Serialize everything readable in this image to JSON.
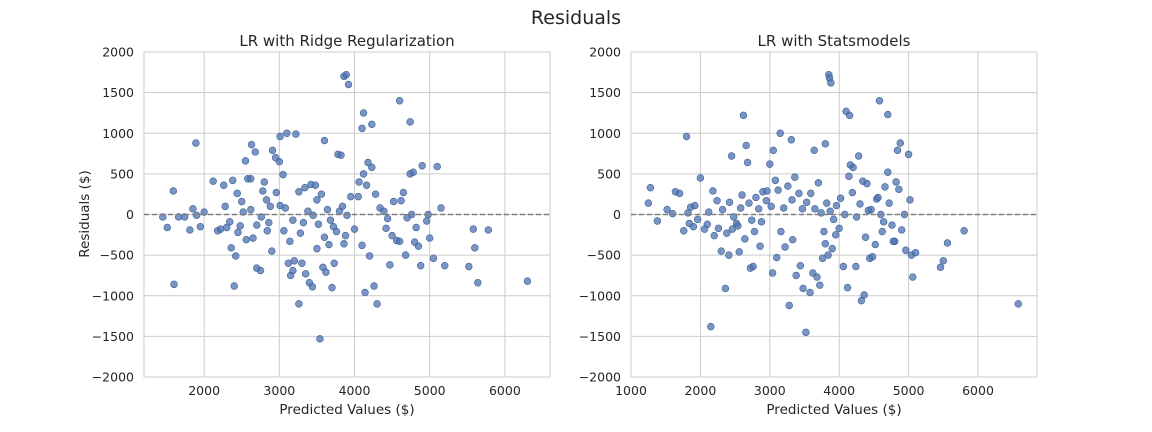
{
  "figure": {
    "suptitle": "Residuals"
  },
  "chart_data": [
    {
      "type": "scatter",
      "title": "LR with Ridge Regularization",
      "xlabel": "Predicted Values ($)",
      "ylabel": "Residuals ($)",
      "xlim": [
        1200,
        6600
      ],
      "ylim": [
        -2000,
        2000
      ],
      "xticks": [
        2000,
        3000,
        4000,
        5000,
        6000
      ],
      "yticks": [
        -2000,
        -1500,
        -1000,
        -500,
        0,
        500,
        1000,
        1500,
        2000
      ],
      "xtick_labels": [
        "2000",
        "3000",
        "4000",
        "5000",
        "6000"
      ],
      "ytick_labels": [
        "−2000",
        "−1500",
        "−1000",
        "−500",
        "0",
        "500",
        "1000",
        "1500",
        "2000"
      ],
      "grid": true,
      "reference_line": {
        "y": 0,
        "style": "dashed",
        "color": "#808080"
      },
      "color": "#4c72b0",
      "points": [
        [
          1890,
          880
        ],
        [
          3010,
          960
        ],
        [
          3220,
          990
        ],
        [
          3860,
          1700
        ],
        [
          3890,
          1720
        ],
        [
          3920,
          1600
        ],
        [
          4120,
          1250
        ],
        [
          4230,
          1110
        ],
        [
          4600,
          1400
        ],
        [
          4740,
          1140
        ],
        [
          4100,
          1060
        ],
        [
          3600,
          910
        ],
        [
          2630,
          860
        ],
        [
          2910,
          790
        ],
        [
          2680,
          770
        ],
        [
          3100,
          1000
        ],
        [
          2120,
          410
        ],
        [
          1590,
          290
        ],
        [
          1450,
          -30
        ],
        [
          1510,
          -160
        ],
        [
          1600,
          -860
        ],
        [
          1660,
          -30
        ],
        [
          1740,
          -30
        ],
        [
          1810,
          -190
        ],
        [
          1850,
          70
        ],
        [
          1900,
          -10
        ],
        [
          1950,
          -150
        ],
        [
          2000,
          30
        ],
        [
          2180,
          -200
        ],
        [
          2220,
          -180
        ],
        [
          2260,
          360
        ],
        [
          2300,
          -160
        ],
        [
          2380,
          420
        ],
        [
          2360,
          -410
        ],
        [
          2420,
          -510
        ],
        [
          2400,
          -880
        ],
        [
          2500,
          160
        ],
        [
          2550,
          660
        ],
        [
          2580,
          440
        ],
        [
          2620,
          440
        ],
        [
          2650,
          -290
        ],
        [
          2700,
          -660
        ],
        [
          2750,
          -690
        ],
        [
          2800,
          400
        ],
        [
          2830,
          180
        ],
        [
          2860,
          -100
        ],
        [
          2900,
          -450
        ],
        [
          2950,
          700
        ],
        [
          3000,
          650
        ],
        [
          3050,
          490
        ],
        [
          3080,
          80
        ],
        [
          3120,
          -600
        ],
        [
          3150,
          -750
        ],
        [
          3180,
          -690
        ],
        [
          3200,
          -570
        ],
        [
          3260,
          -1100
        ],
        [
          3300,
          -600
        ],
        [
          3350,
          -730
        ],
        [
          3400,
          -840
        ],
        [
          3440,
          -890
        ],
        [
          3500,
          -420
        ],
        [
          3540,
          -1530
        ],
        [
          3580,
          -650
        ],
        [
          3620,
          -710
        ],
        [
          3660,
          -370
        ],
        [
          3700,
          -900
        ],
        [
          3730,
          -600
        ],
        [
          3780,
          740
        ],
        [
          3820,
          730
        ],
        [
          3860,
          -360
        ],
        [
          3900,
          -10
        ],
        [
          3950,
          220
        ],
        [
          4000,
          -180
        ],
        [
          4050,
          220
        ],
        [
          4100,
          -380
        ],
        [
          4140,
          -960
        ],
        [
          4180,
          640
        ],
        [
          4200,
          -510
        ],
        [
          4230,
          580
        ],
        [
          4260,
          -880
        ],
        [
          4300,
          -1100
        ],
        [
          4340,
          80
        ],
        [
          4390,
          40
        ],
        [
          4420,
          -170
        ],
        [
          4470,
          -620
        ],
        [
          4520,
          160
        ],
        [
          4560,
          -320
        ],
        [
          4600,
          -330
        ],
        [
          4650,
          270
        ],
        [
          4700,
          -40
        ],
        [
          4740,
          500
        ],
        [
          4780,
          520
        ],
        [
          4820,
          -160
        ],
        [
          4850,
          -390
        ],
        [
          4880,
          -630
        ],
        [
          4900,
          600
        ],
        [
          4980,
          0
        ],
        [
          5050,
          -540
        ],
        [
          5100,
          590
        ],
        [
          5150,
          80
        ],
        [
          5200,
          -630
        ],
        [
          5520,
          -640
        ],
        [
          5580,
          -180
        ],
        [
          5600,
          -410
        ],
        [
          5640,
          -840
        ],
        [
          5780,
          -190
        ],
        [
          6300,
          -820
        ],
        [
          2960,
          270
        ],
        [
          3010,
          110
        ],
        [
          2450,
          -220
        ],
        [
          2520,
          30
        ],
        [
          2700,
          -130
        ],
        [
          2780,
          290
        ],
        [
          3260,
          280
        ],
        [
          3340,
          330
        ],
        [
          3420,
          370
        ],
        [
          3480,
          360
        ],
        [
          3500,
          180
        ],
        [
          3560,
          250
        ],
        [
          3640,
          60
        ],
        [
          3680,
          -70
        ],
        [
          3720,
          -150
        ],
        [
          3760,
          -210
        ],
        [
          3800,
          40
        ],
        [
          3840,
          100
        ],
        [
          3880,
          -260
        ],
        [
          3280,
          -230
        ],
        [
          3320,
          -100
        ],
        [
          3380,
          40
        ],
        [
          3450,
          -10
        ],
        [
          3520,
          -120
        ],
        [
          3600,
          -280
        ],
        [
          3060,
          -200
        ],
        [
          3140,
          -330
        ],
        [
          3180,
          -70
        ],
        [
          2880,
          100
        ],
        [
          2840,
          -200
        ],
        [
          2760,
          -30
        ],
        [
          2620,
          60
        ],
        [
          2560,
          -310
        ],
        [
          2480,
          -140
        ],
        [
          2440,
          260
        ],
        [
          2340,
          -90
        ],
        [
          2280,
          100
        ],
        [
          4060,
          400
        ],
        [
          4120,
          500
        ],
        [
          4160,
          360
        ],
        [
          4280,
          250
        ],
        [
          4440,
          -50
        ],
        [
          4500,
          -260
        ],
        [
          4620,
          170
        ],
        [
          4680,
          -500
        ],
        [
          4800,
          -340
        ],
        [
          5000,
          -290
        ],
        [
          4960,
          -80
        ],
        [
          4760,
          0
        ]
      ]
    },
    {
      "type": "scatter",
      "title": "LR with Statsmodels",
      "xlabel": "Predicted Values ($)",
      "ylabel": "",
      "xlim": [
        1000,
        6850
      ],
      "ylim": [
        -2000,
        2000
      ],
      "xticks": [
        1000,
        2000,
        3000,
        4000,
        5000,
        6000
      ],
      "yticks": [
        -2000,
        -1500,
        -1000,
        -500,
        0,
        500,
        1000,
        1500,
        2000
      ],
      "xtick_labels": [
        "1000",
        "2000",
        "3000",
        "4000",
        "5000",
        "6000"
      ],
      "ytick_labels": [
        "−2000",
        "−1500",
        "−1000",
        "−500",
        "0",
        "500",
        "1000",
        "1500",
        "2000"
      ],
      "grid": true,
      "reference_line": {
        "y": 0,
        "style": "dashed",
        "color": "#808080"
      },
      "color": "#4c72b0",
      "points": [
        [
          1800,
          960
        ],
        [
          2620,
          1220
        ],
        [
          3150,
          1000
        ],
        [
          3850,
          1720
        ],
        [
          3860,
          1680
        ],
        [
          3880,
          1620
        ],
        [
          4100,
          1270
        ],
        [
          4150,
          1220
        ],
        [
          4580,
          1400
        ],
        [
          4700,
          1230
        ],
        [
          3800,
          870
        ],
        [
          3310,
          920
        ],
        [
          2660,
          850
        ],
        [
          3050,
          790
        ],
        [
          2450,
          720
        ],
        [
          3640,
          790
        ],
        [
          1250,
          140
        ],
        [
          1280,
          330
        ],
        [
          1380,
          -80
        ],
        [
          1520,
          60
        ],
        [
          1600,
          10
        ],
        [
          1640,
          280
        ],
        [
          1700,
          260
        ],
        [
          1760,
          -200
        ],
        [
          1820,
          20
        ],
        [
          1860,
          90
        ],
        [
          1900,
          -150
        ],
        [
          2000,
          450
        ],
        [
          2100,
          -120
        ],
        [
          2150,
          -1380
        ],
        [
          2200,
          -260
        ],
        [
          2240,
          170
        ],
        [
          2300,
          -450
        ],
        [
          2360,
          -910
        ],
        [
          2410,
          -500
        ],
        [
          2460,
          -180
        ],
        [
          2520,
          -110
        ],
        [
          2560,
          -460
        ],
        [
          2600,
          240
        ],
        [
          2680,
          640
        ],
        [
          2720,
          -660
        ],
        [
          2760,
          -640
        ],
        [
          2800,
          210
        ],
        [
          2860,
          -390
        ],
        [
          2900,
          280
        ],
        [
          2950,
          170
        ],
        [
          3000,
          620
        ],
        [
          3040,
          -720
        ],
        [
          3100,
          -530
        ],
        [
          3160,
          -210
        ],
        [
          3220,
          -400
        ],
        [
          3280,
          -1120
        ],
        [
          3330,
          -310
        ],
        [
          3380,
          -750
        ],
        [
          3440,
          -630
        ],
        [
          3480,
          -910
        ],
        [
          3520,
          -1450
        ],
        [
          3580,
          -960
        ],
        [
          3620,
          -720
        ],
        [
          3680,
          -770
        ],
        [
          3720,
          -870
        ],
        [
          3760,
          -540
        ],
        [
          3800,
          -360
        ],
        [
          3840,
          -500
        ],
        [
          3900,
          -420
        ],
        [
          3950,
          -250
        ],
        [
          4000,
          -170
        ],
        [
          4060,
          -640
        ],
        [
          4120,
          -900
        ],
        [
          4160,
          610
        ],
        [
          4200,
          580
        ],
        [
          4240,
          -640
        ],
        [
          4280,
          720
        ],
        [
          4320,
          -1060
        ],
        [
          4360,
          -990
        ],
        [
          4400,
          380
        ],
        [
          4440,
          -540
        ],
        [
          4480,
          -520
        ],
        [
          4540,
          190
        ],
        [
          4600,
          0
        ],
        [
          4640,
          -90
        ],
        [
          4700,
          520
        ],
        [
          4760,
          -130
        ],
        [
          4800,
          -330
        ],
        [
          4840,
          790
        ],
        [
          4880,
          880
        ],
        [
          4940,
          0
        ],
        [
          5000,
          740
        ],
        [
          5040,
          -500
        ],
        [
          5060,
          -770
        ],
        [
          5100,
          -470
        ],
        [
          5460,
          -650
        ],
        [
          5500,
          -570
        ],
        [
          5560,
          -350
        ],
        [
          5800,
          -200
        ],
        [
          6580,
          -1100
        ],
        [
          2960,
          290
        ],
        [
          3020,
          100
        ],
        [
          3080,
          420
        ],
        [
          3120,
          300
        ],
        [
          3200,
          80
        ],
        [
          3260,
          350
        ],
        [
          3320,
          180
        ],
        [
          3360,
          460
        ],
        [
          3420,
          260
        ],
        [
          3470,
          70
        ],
        [
          3530,
          150
        ],
        [
          3590,
          260
        ],
        [
          3650,
          70
        ],
        [
          3700,
          390
        ],
        [
          3740,
          20
        ],
        [
          3780,
          -210
        ],
        [
          3820,
          140
        ],
        [
          3870,
          40
        ],
        [
          3920,
          -60
        ],
        [
          3960,
          110
        ],
        [
          4020,
          200
        ],
        [
          4080,
          0
        ],
        [
          4140,
          470
        ],
        [
          4190,
          270
        ],
        [
          4250,
          -30
        ],
        [
          4300,
          130
        ],
        [
          4340,
          410
        ],
        [
          4380,
          -280
        ],
        [
          4420,
          50
        ],
        [
          4460,
          60
        ],
        [
          4520,
          -370
        ],
        [
          4560,
          210
        ],
        [
          4620,
          -210
        ],
        [
          4660,
          340
        ],
        [
          4720,
          140
        ],
        [
          4780,
          -330
        ],
        [
          4820,
          400
        ],
        [
          4860,
          310
        ],
        [
          4900,
          -190
        ],
        [
          4960,
          -440
        ],
        [
          5020,
          180
        ],
        [
          2880,
          -90
        ],
        [
          2840,
          70
        ],
        [
          2780,
          -210
        ],
        [
          2740,
          -70
        ],
        [
          2700,
          140
        ],
        [
          2640,
          -300
        ],
        [
          2580,
          80
        ],
        [
          2540,
          -140
        ],
        [
          2480,
          -30
        ],
        [
          2420,
          150
        ],
        [
          2380,
          -230
        ],
        [
          2320,
          60
        ],
        [
          2260,
          -170
        ],
        [
          2180,
          290
        ],
        [
          2120,
          30
        ],
        [
          2060,
          -180
        ],
        [
          1960,
          -60
        ],
        [
          1920,
          110
        ],
        [
          1840,
          -110
        ]
      ]
    }
  ]
}
